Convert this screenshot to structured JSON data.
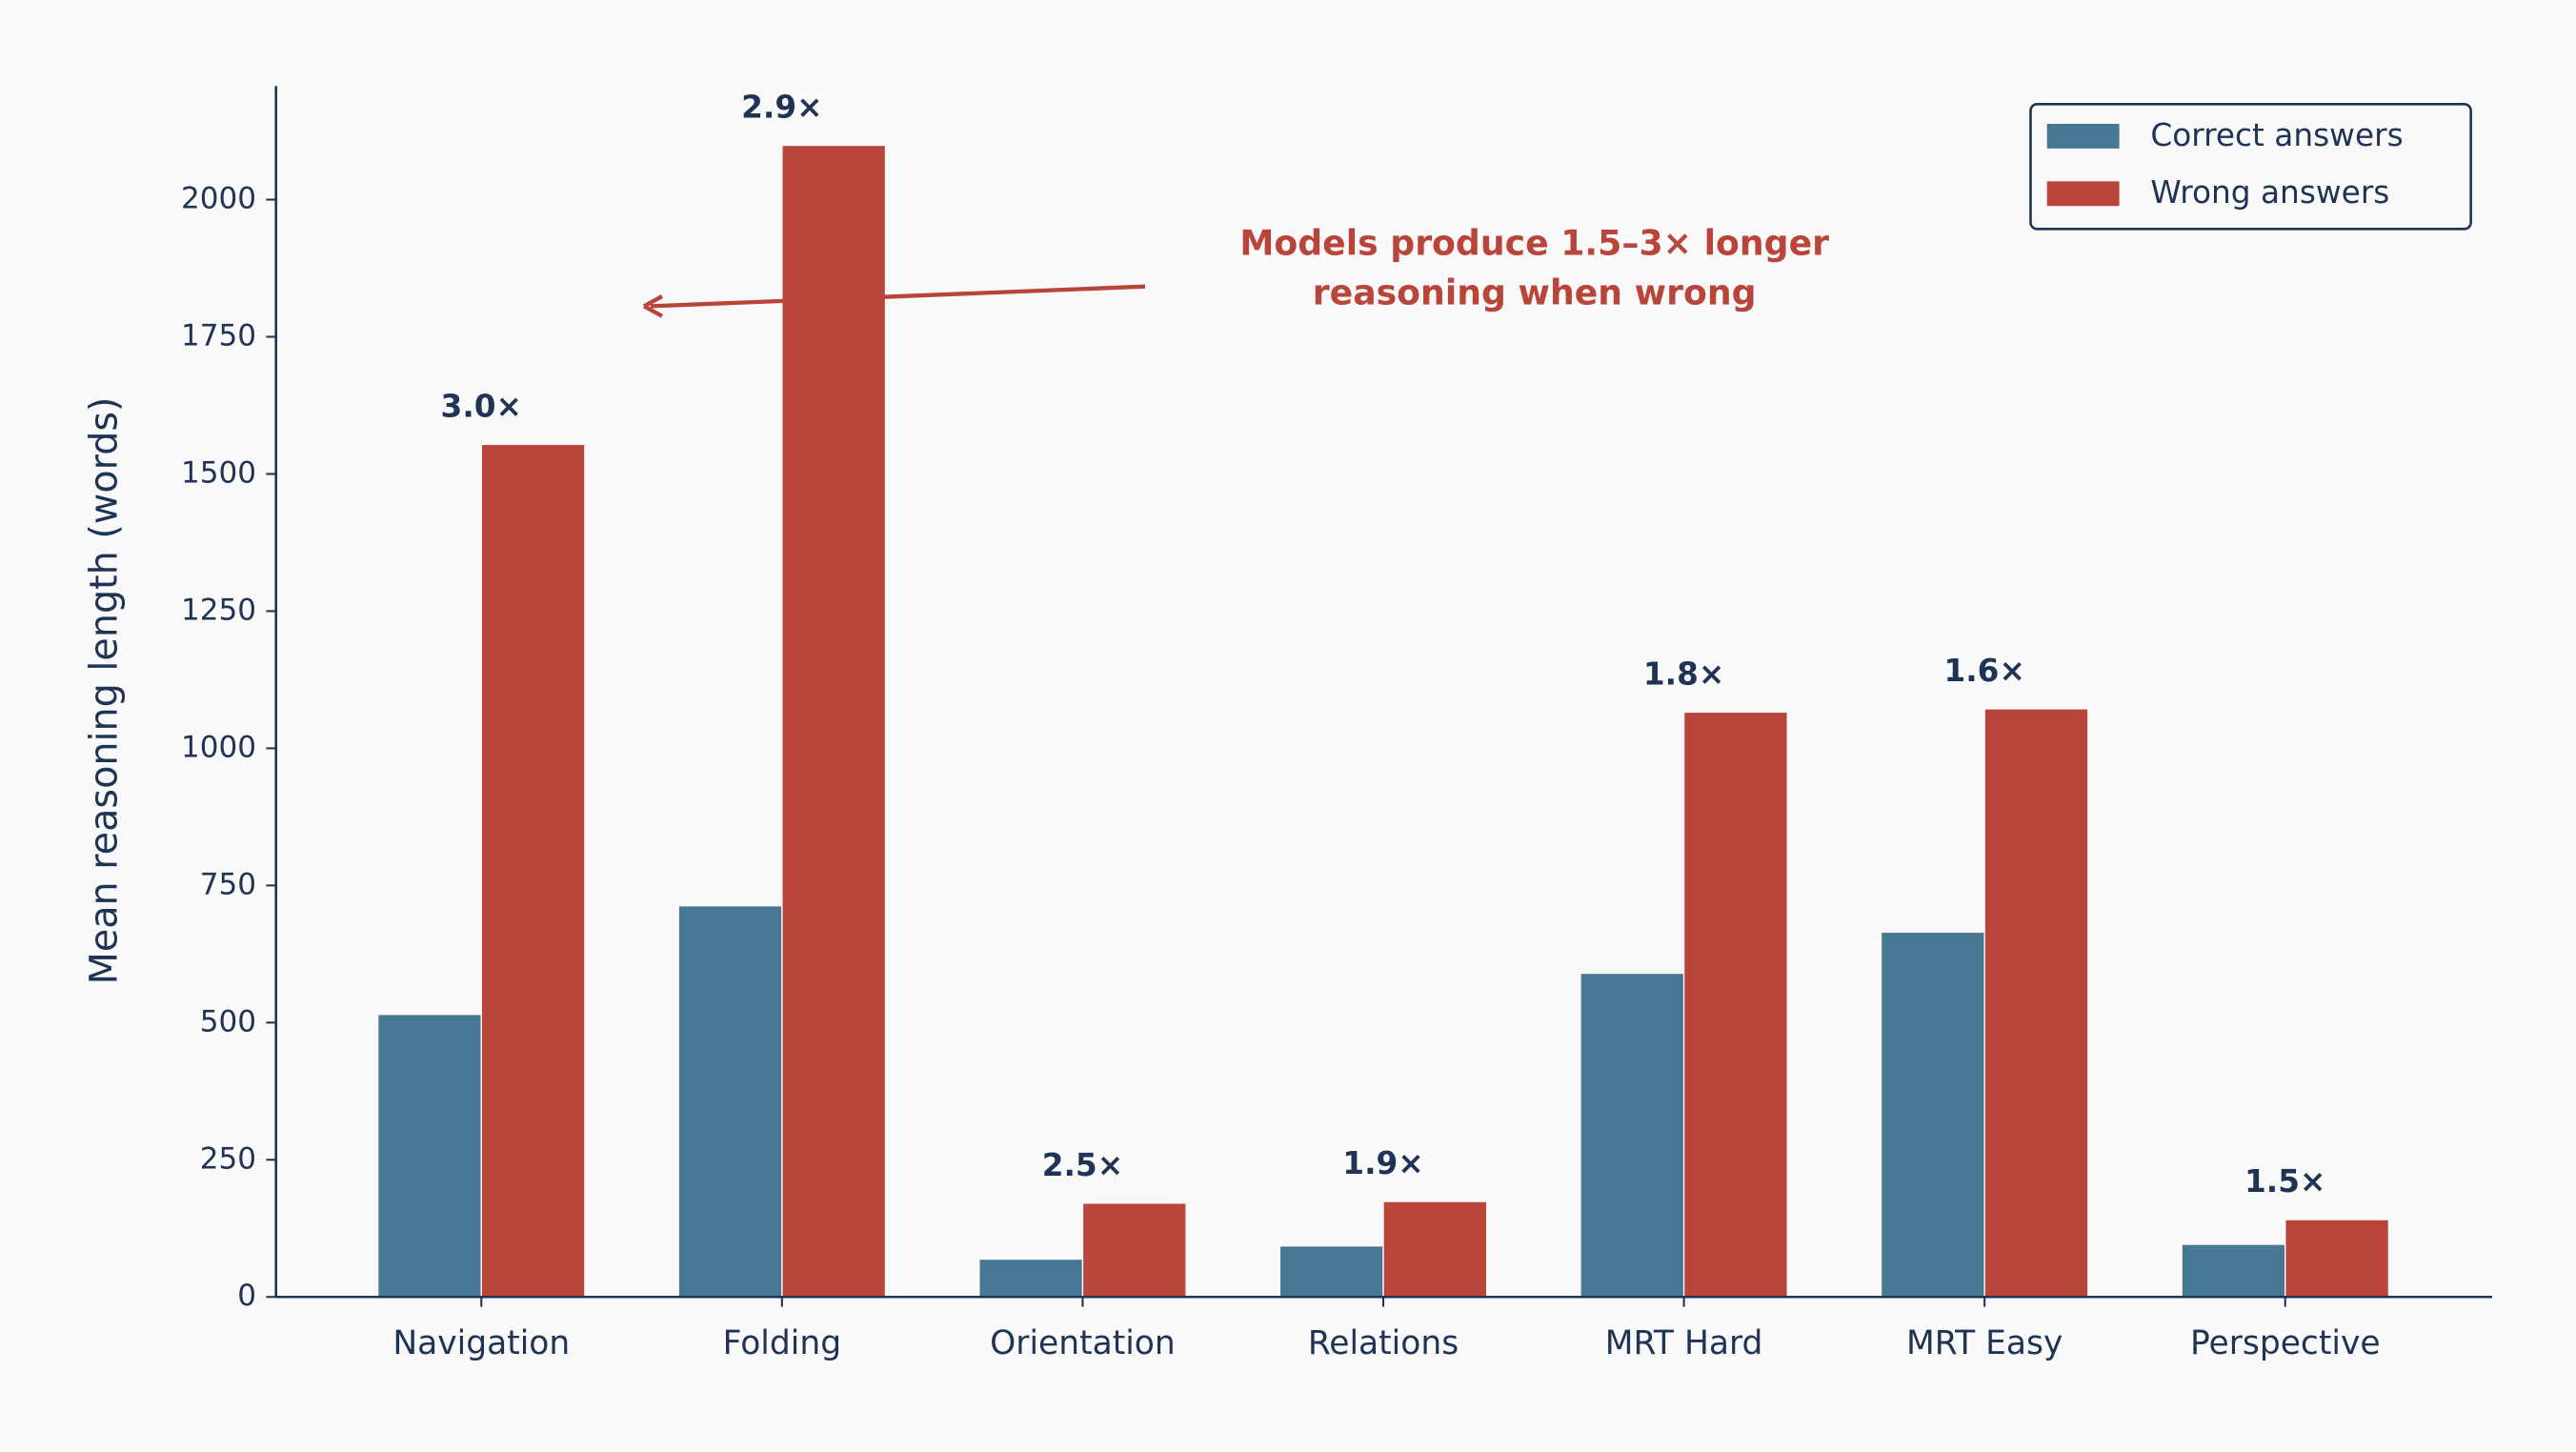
{
  "chart_data": {
    "type": "bar",
    "y_label": "Mean reasoning length (words)",
    "categories": [
      "Navigation",
      "Folding",
      "Orientation",
      "Relations",
      "MRT Hard",
      "MRT Easy",
      "Perspective"
    ],
    "series": [
      {
        "name": "Correct answers",
        "color": "#477793",
        "values": [
          515,
          713,
          69,
          93,
          590,
          665,
          96
        ]
      },
      {
        "name": "Wrong answers",
        "color": "#b9443a",
        "values": [
          1554,
          2099,
          171,
          174,
          1066,
          1072,
          141
        ]
      }
    ],
    "ratio_labels": [
      "3.0×",
      "2.9×",
      "2.5×",
      "1.9×",
      "1.8×",
      "1.6×",
      "1.5×"
    ],
    "annotation": [
      "Models produce 1.5–3× longer",
      "reasoning when wrong"
    ],
    "ylim": [
      0,
      2207
    ],
    "yticks": [
      0,
      250,
      500,
      750,
      1000,
      1250,
      1500,
      1750,
      2000
    ],
    "legend": "upper right"
  }
}
